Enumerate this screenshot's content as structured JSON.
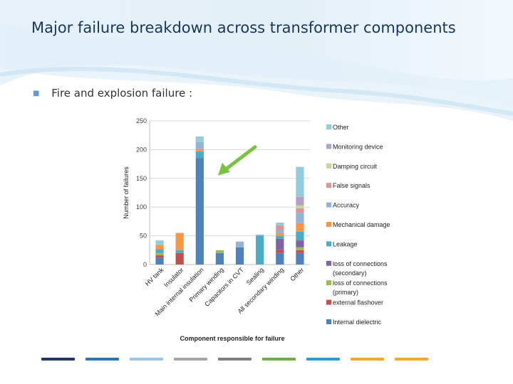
{
  "slide": {
    "title": "Major failure breakdown across transformer components",
    "bullet": "Fire and explosion failure :"
  },
  "chart_data": {
    "type": "bar",
    "stacked": true,
    "xlabel": "Component responsible for failure",
    "ylabel": "Number of failures",
    "ylim": [
      0,
      250
    ],
    "yticks": [
      0,
      50,
      100,
      150,
      200,
      250
    ],
    "grid": true,
    "legend_position": "right",
    "categories": [
      "HV tank",
      "Insulator",
      "Main internal insulation",
      "Primary winding",
      "Capacitors in CVT",
      "Sealing",
      "All secondary winding",
      "Other"
    ],
    "series": [
      {
        "name": "Internal dielectric",
        "color": "#4f81bd",
        "values": [
          12,
          0,
          185,
          20,
          30,
          0,
          20,
          20
        ]
      },
      {
        "name": "external flashover",
        "color": "#c0504d",
        "values": [
          4,
          20,
          0,
          0,
          0,
          0,
          5,
          5
        ]
      },
      {
        "name": "loss of connections (primary)",
        "color": "#9bbb59",
        "values": [
          4,
          0,
          0,
          5,
          0,
          0,
          0,
          5
        ]
      },
      {
        "name": "loss of connections (secondary)",
        "color": "#8064a2",
        "values": [
          0,
          0,
          0,
          0,
          0,
          0,
          20,
          12
        ]
      },
      {
        "name": "Leakage",
        "color": "#4bacc6",
        "values": [
          6,
          5,
          12,
          0,
          0,
          50,
          5,
          15
        ]
      },
      {
        "name": "Mechanical damage",
        "color": "#f79646",
        "values": [
          8,
          30,
          4,
          0,
          0,
          0,
          5,
          15
        ]
      },
      {
        "name": "Accuracy",
        "color": "#95b3d7",
        "values": [
          0,
          0,
          12,
          0,
          10,
          2,
          5,
          18
        ]
      },
      {
        "name": "False signals",
        "color": "#d99694",
        "values": [
          0,
          0,
          0,
          0,
          0,
          0,
          8,
          8
        ]
      },
      {
        "name": "Damping circuit",
        "color": "#c3d69b",
        "values": [
          0,
          0,
          0,
          0,
          0,
          0,
          0,
          5
        ]
      },
      {
        "name": "Monitoring device",
        "color": "#b2a1c7",
        "values": [
          0,
          0,
          0,
          0,
          0,
          0,
          0,
          15
        ]
      },
      {
        "name": "Other",
        "color": "#93cddd",
        "values": [
          8,
          0,
          10,
          0,
          0,
          0,
          5,
          52
        ]
      }
    ],
    "legend_order": [
      "Other",
      "Monitoring device",
      "Damping circuit",
      "False signals",
      "Accuracy",
      "Mechanical damage",
      "Leakage",
      "loss of connections (secondary)",
      "loss of connections (primary)",
      "external flashover",
      "Internal dielectric"
    ],
    "annotation": {
      "type": "arrow",
      "color": "#7cc242",
      "points_to": "Main internal insulation"
    }
  },
  "footer_colors": [
    "#1f3864",
    "#2e75b6",
    "#9dc3e6",
    "#a5a5a5",
    "#7f7f7f",
    "#70ad47",
    "#2e9bd6",
    "#f4a533",
    "#f4a533"
  ]
}
